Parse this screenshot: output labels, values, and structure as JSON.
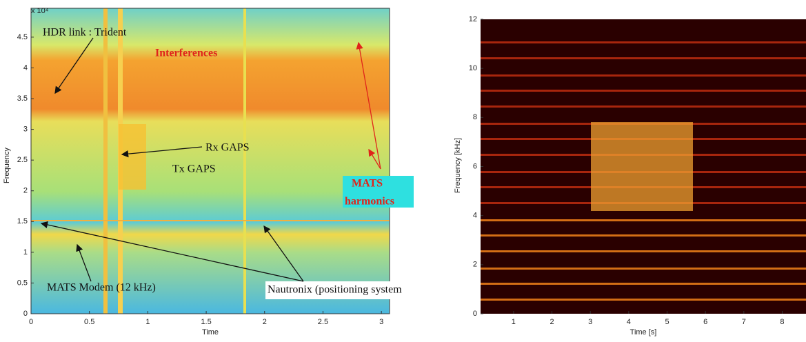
{
  "chart_data": [
    {
      "type": "spectrogram",
      "xlabel": "Time",
      "ylabel": "Frequency",
      "y_multiplier": "x 10⁴",
      "xlim": [
        0,
        3.07
      ],
      "xticks": [
        0,
        0.5,
        1,
        1.5,
        2,
        2.5,
        3
      ],
      "ylim": [
        0,
        4.97
      ],
      "yticks": [
        0,
        0.5,
        1,
        1.5,
        2,
        2.5,
        3,
        3.5,
        4,
        4.5
      ],
      "annotations": [
        "HDR link  : Trident",
        "Interferences",
        "Rx GAPS",
        "Tx GAPS",
        "MATS",
        "harmonics",
        "MATS Modem (12 kHz)",
        "Nautronix (positioning system"
      ]
    },
    {
      "type": "spectrogram",
      "xlabel": "Time [s]",
      "ylabel": "Frequency [kHz]",
      "xlim": [
        0.14,
        8.62
      ],
      "xticks": [
        1,
        2,
        3,
        4,
        5,
        6,
        7,
        8
      ],
      "ylim": [
        0,
        12
      ],
      "yticks": [
        0,
        2,
        4,
        6,
        8,
        10,
        12
      ]
    }
  ]
}
